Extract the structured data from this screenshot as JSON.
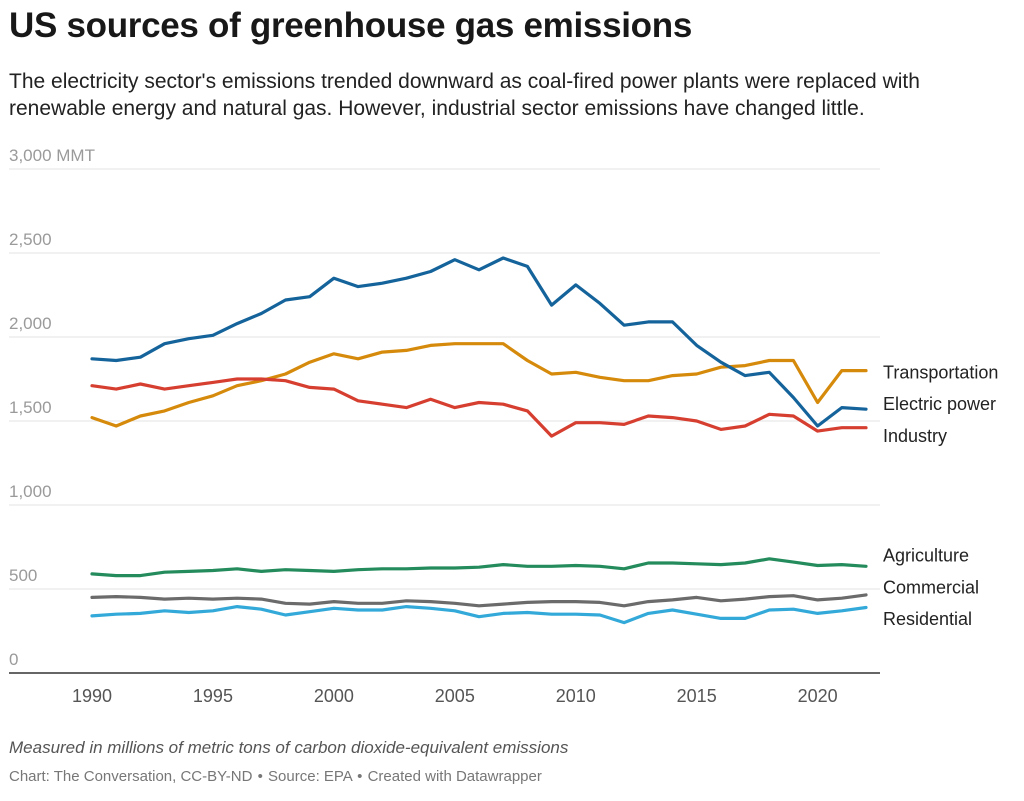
{
  "header": {
    "title": "US sources of greenhouse gas emissions",
    "subtitle": "The electricity sector's emissions trended downward as coal-fired power plants were replaced with renewable energy and natural gas. However, industrial sector emissions have changed little."
  },
  "footer": {
    "notes": "Measured in millions of metric tons of carbon dioxide-equivalent emissions",
    "credit": "Chart: The Conversation, CC-BY-ND",
    "source": "Source: EPA",
    "tool": "Created with Datawrapper",
    "separator": "•"
  },
  "chart_data": {
    "type": "line",
    "title": "US sources of greenhouse gas emissions",
    "xlabel": "",
    "ylabel": "",
    "unit": "MMT",
    "ylim": [
      0,
      3000
    ],
    "xlim": [
      1990,
      2022
    ],
    "y_ticks": [
      0,
      500,
      1000,
      1500,
      2000,
      2500,
      3000
    ],
    "y_tick_labels": [
      "0",
      "500",
      "1,000",
      "1,500",
      "2,000",
      "2,500",
      "3,000 MMT"
    ],
    "x_ticks": [
      1990,
      1995,
      2000,
      2005,
      2010,
      2015,
      2020
    ],
    "x_tick_labels": [
      "1990",
      "1995",
      "2000",
      "2005",
      "2010",
      "2015",
      "2020"
    ],
    "grid": true,
    "legend": "direct labels at line ends (right)",
    "x": [
      1990,
      1991,
      1992,
      1993,
      1994,
      1995,
      1996,
      1997,
      1998,
      1999,
      2000,
      2001,
      2002,
      2003,
      2004,
      2005,
      2006,
      2007,
      2008,
      2009,
      2010,
      2011,
      2012,
      2013,
      2014,
      2015,
      2016,
      2017,
      2018,
      2019,
      2020,
      2021,
      2022
    ],
    "series": [
      {
        "name": "Transportation",
        "color": "#d68a0b",
        "values": [
          1520,
          1470,
          1530,
          1560,
          1610,
          1650,
          1710,
          1740,
          1780,
          1850,
          1900,
          1870,
          1910,
          1920,
          1950,
          1960,
          1960,
          1960,
          1860,
          1780,
          1790,
          1760,
          1740,
          1740,
          1770,
          1780,
          1820,
          1830,
          1860,
          1860,
          1610,
          1800,
          1800
        ]
      },
      {
        "name": "Electric power",
        "color": "#15639b",
        "values": [
          1870,
          1860,
          1880,
          1960,
          1990,
          2010,
          2080,
          2140,
          2220,
          2240,
          2350,
          2300,
          2320,
          2350,
          2390,
          2460,
          2400,
          2470,
          2420,
          2190,
          2310,
          2200,
          2070,
          2090,
          2090,
          1950,
          1850,
          1770,
          1790,
          1640,
          1470,
          1580,
          1570
        ]
      },
      {
        "name": "Industry",
        "color": "#d63f30",
        "values": [
          1710,
          1690,
          1720,
          1690,
          1710,
          1730,
          1750,
          1750,
          1740,
          1700,
          1690,
          1620,
          1600,
          1580,
          1630,
          1580,
          1610,
          1600,
          1560,
          1410,
          1490,
          1490,
          1480,
          1530,
          1520,
          1500,
          1450,
          1470,
          1540,
          1530,
          1440,
          1460,
          1460
        ]
      },
      {
        "name": "Agriculture",
        "color": "#238b5c",
        "values": [
          590,
          580,
          580,
          600,
          605,
          610,
          620,
          605,
          615,
          610,
          605,
          615,
          620,
          620,
          625,
          625,
          630,
          645,
          635,
          635,
          640,
          635,
          620,
          655,
          655,
          650,
          645,
          655,
          680,
          660,
          640,
          645,
          635
        ]
      },
      {
        "name": "Commercial",
        "color": "#6b6b6b",
        "values": [
          450,
          455,
          450,
          440,
          445,
          440,
          445,
          440,
          415,
          410,
          425,
          415,
          415,
          430,
          425,
          415,
          400,
          410,
          420,
          425,
          425,
          420,
          400,
          425,
          435,
          450,
          430,
          440,
          455,
          460,
          435,
          445,
          465
        ]
      },
      {
        "name": "Residential",
        "color": "#33a9d9",
        "values": [
          340,
          350,
          355,
          370,
          360,
          370,
          395,
          380,
          345,
          365,
          385,
          375,
          375,
          395,
          385,
          370,
          335,
          355,
          360,
          350,
          350,
          345,
          300,
          355,
          375,
          350,
          325,
          325,
          375,
          380,
          355,
          370,
          390
        ]
      }
    ]
  }
}
